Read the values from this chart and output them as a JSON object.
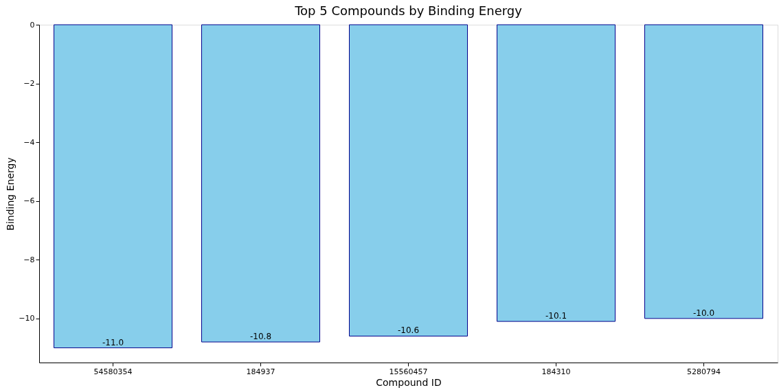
{
  "chart_data": {
    "type": "bar",
    "title": "Top 5 Compounds by Binding Energy",
    "xlabel": "Compound ID",
    "ylabel": "Binding Energy",
    "categories": [
      "54580354",
      "184937",
      "15560457",
      "184310",
      "5280794"
    ],
    "series": [
      {
        "color": "#87ceeb",
        "values": [
          -11.0,
          -10.8,
          -10.6,
          -10.1,
          -10.0
        ],
        "value_labels": [
          "-11.0",
          "-10.8",
          "-10.6",
          "-10.1",
          "-10.0"
        ]
      }
    ],
    "ylim": [
      -11.5,
      0
    ],
    "yticks": [
      -10,
      -8,
      -6,
      -4,
      -2,
      0
    ],
    "grid": false
  }
}
